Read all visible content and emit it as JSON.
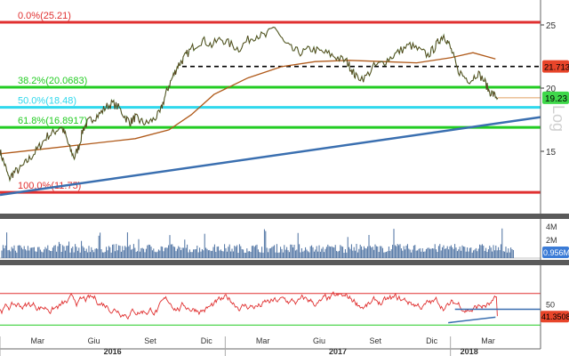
{
  "watermark": "Log",
  "chart_data": [
    {
      "type": "line",
      "panel": "price",
      "title": "",
      "x_labels": [
        "Mar",
        "Giu",
        "Set",
        "Dic",
        "Mar",
        "Giu",
        "Set",
        "Dic",
        "Mar"
      ],
      "x_positions": [
        2016.167,
        2016.417,
        2016.667,
        2016.917,
        2017.167,
        2017.417,
        2017.667,
        2017.917,
        2018.167
      ],
      "year_labels": [
        {
          "text": "2016",
          "x": 2016.5
        },
        {
          "text": "2017",
          "x": 2017.5
        },
        {
          "text": "2018",
          "x": 2018.083
        }
      ],
      "year_dividers": [
        2016.0,
        2017.0,
        2018.0
      ],
      "xlim": [
        2016.0,
        2018.4
      ],
      "ylim": [
        11.0,
        26.2
      ],
      "y_ticks": [
        15,
        20,
        25
      ],
      "last_value": "19.23",
      "resistance": {
        "value": 21.7131,
        "label": "21.7131"
      },
      "fib_levels": [
        {
          "label": "0.0%(25.21)",
          "value": 25.21,
          "color": "#e03030"
        },
        {
          "label": "38.2%(20.0683)",
          "value": 20.0683,
          "color": "#22cc22"
        },
        {
          "label": "50.0%(18.48)",
          "value": 18.48,
          "color": "#2fd8ec"
        },
        {
          "label": "61.8%(16.8917)",
          "value": 16.8917,
          "color": "#22cc22"
        },
        {
          "label": "100.0%(11.75)",
          "value": 11.75,
          "color": "#e03030"
        }
      ],
      "trendline": {
        "x": [
          2016.0,
          2018.4
        ],
        "y": [
          11.55,
          17.7
        ],
        "color": "#3a6fb0"
      },
      "series": [
        {
          "color": "#2a8a2a",
          "x": [
            2016.0,
            2016.02,
            2016.04,
            2016.06,
            2016.09,
            2016.12,
            2016.15,
            2016.18,
            2016.21,
            2016.24,
            2016.27,
            2016.29,
            2016.31,
            2016.33,
            2016.35,
            2016.37,
            2016.39,
            2016.41,
            2016.44,
            2016.47,
            2016.5,
            2016.53,
            2016.56,
            2016.58,
            2016.6,
            2016.62,
            2016.65,
            2016.68,
            2016.71,
            2016.73,
            2016.75,
            2016.77,
            2016.79,
            2016.81,
            2016.83,
            2016.86,
            2016.9,
            2016.94,
            2016.98,
            2017.02,
            2017.06,
            2017.1,
            2017.14,
            2017.18,
            2017.22,
            2017.26,
            2017.3,
            2017.34,
            2017.38,
            2017.42,
            2017.46,
            2017.5,
            2017.54,
            2017.56,
            2017.58,
            2017.62,
            2017.66,
            2017.7,
            2017.74,
            2017.78,
            2017.82,
            2017.86,
            2017.9,
            2017.93,
            2017.95,
            2017.97,
            2017.99,
            2018.01,
            2018.03,
            2018.06,
            2018.09,
            2018.12,
            2018.15,
            2018.17,
            2018.19,
            2018.21
          ],
          "y": [
            15.0,
            14.0,
            12.8,
            13.3,
            13.6,
            14.2,
            14.8,
            15.5,
            16.2,
            16.5,
            17.0,
            16.3,
            15.2,
            14.5,
            15.4,
            16.8,
            17.3,
            17.6,
            17.9,
            18.5,
            18.8,
            18.4,
            17.6,
            17.3,
            17.7,
            17.4,
            17.2,
            17.5,
            18.0,
            19.2,
            20.2,
            21.0,
            21.8,
            22.2,
            22.7,
            23.3,
            23.8,
            23.4,
            23.9,
            23.5,
            23.1,
            23.8,
            24.2,
            24.1,
            24.9,
            23.6,
            23.0,
            22.8,
            23.1,
            22.9,
            22.7,
            22.4,
            22.1,
            21.5,
            20.9,
            20.8,
            21.7,
            22.0,
            22.5,
            23.0,
            23.4,
            23.0,
            22.6,
            23.2,
            23.8,
            24.2,
            23.6,
            22.7,
            21.5,
            20.9,
            20.6,
            21.2,
            20.6,
            19.8,
            19.5,
            19.23
          ]
        },
        {
          "color": "#b05a1a",
          "x": [
            2016.0,
            2016.2,
            2016.4,
            2016.6,
            2016.75,
            2016.85,
            2016.95,
            2017.1,
            2017.25,
            2017.4,
            2017.55,
            2017.7,
            2017.85,
            2018.0,
            2018.1,
            2018.2
          ],
          "y": [
            14.8,
            15.2,
            15.6,
            16.0,
            16.7,
            17.9,
            19.5,
            20.8,
            21.7,
            22.1,
            22.2,
            22.1,
            22.0,
            22.4,
            22.8,
            22.3
          ]
        }
      ]
    },
    {
      "type": "bar",
      "panel": "volume",
      "y_ticks": [
        "4M",
        "2M"
      ],
      "last_value": "0.956M"
    },
    {
      "type": "line",
      "panel": "rsi",
      "ylim": [
        0,
        100
      ],
      "y_ticks": [
        50
      ],
      "last_value": "41.3508",
      "band_upper": 70,
      "band_lower": 30,
      "support_line": {
        "x": [
          2018.02,
          2018.17
        ],
        "y": [
          50.0,
          50.0
        ]
      },
      "trend_line": {
        "x": [
          2017.99,
          2018.2
        ],
        "y": [
          33.0,
          40.0
        ]
      }
    }
  ]
}
